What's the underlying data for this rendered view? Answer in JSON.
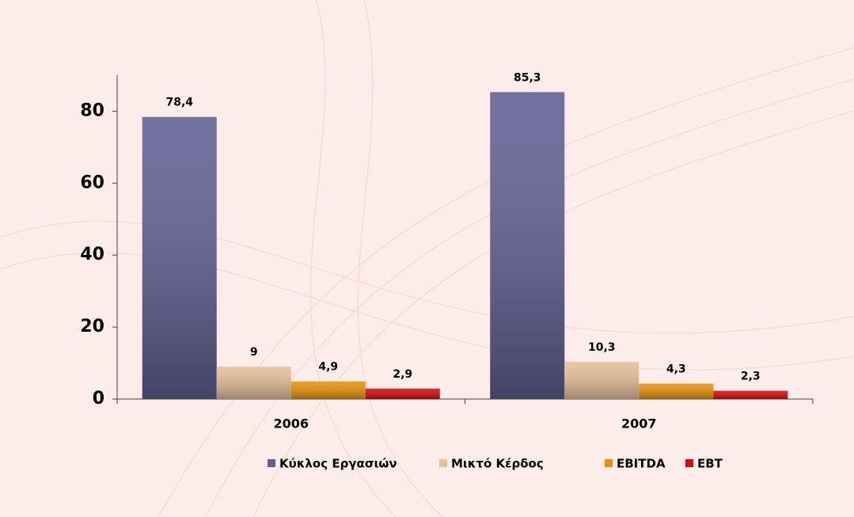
{
  "chart_data": {
    "type": "bar",
    "categories": [
      "2006",
      "2007"
    ],
    "series": [
      {
        "name": "Κύκλος Εργασιών",
        "color": "#5f5f92",
        "values": [
          78.4,
          85.3
        ],
        "value_labels": [
          "78,4",
          "85,3"
        ]
      },
      {
        "name": "Μικτό Κέρδος",
        "color": "#e6bf98",
        "values": [
          9,
          10.3
        ],
        "value_labels": [
          "9",
          "10,3"
        ]
      },
      {
        "name": "EBITDA",
        "color": "#e8900a",
        "values": [
          4.9,
          4.3
        ],
        "value_labels": [
          "4,9",
          "4,3"
        ]
      },
      {
        "name": "EBT",
        "color": "#d90808",
        "values": [
          2.9,
          2.3
        ],
        "value_labels": [
          "2,9",
          "2,3"
        ]
      }
    ],
    "ylim": [
      0,
      90
    ],
    "yticks": [
      0,
      20,
      40,
      60,
      80
    ],
    "legend": "bottom"
  }
}
